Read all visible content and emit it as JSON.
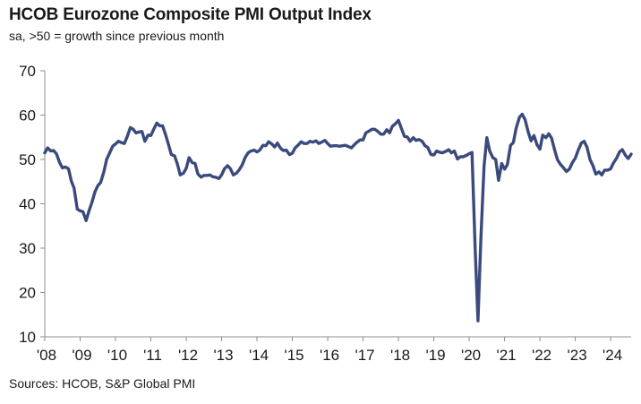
{
  "title": "HCOB Eurozone Composite PMI Output Index",
  "subtitle": "sa, >50 = growth  since previous month",
  "source": "Sources: HCOB,  S&P Global  PMI",
  "colors": {
    "series": "#3a4a7c",
    "axis": "#8c8c8c"
  },
  "chart_data": {
    "type": "line",
    "title": "HCOB Eurozone Composite PMI Output Index",
    "subtitle": "sa, >50 = growth  since previous month",
    "ylim": [
      10,
      70
    ],
    "yticks": [
      10,
      20,
      30,
      40,
      50,
      60,
      70
    ],
    "xlim": [
      2008,
      2024.58
    ],
    "xticks": [
      {
        "v": 2008,
        "label": "'08"
      },
      {
        "v": 2009,
        "label": "'09"
      },
      {
        "v": 2010,
        "label": "'10"
      },
      {
        "v": 2011,
        "label": "'11"
      },
      {
        "v": 2012,
        "label": "'12"
      },
      {
        "v": 2013,
        "label": "'13"
      },
      {
        "v": 2014,
        "label": "'14"
      },
      {
        "v": 2015,
        "label": "'15"
      },
      {
        "v": 2016,
        "label": "'16"
      },
      {
        "v": 2017,
        "label": "'17"
      },
      {
        "v": 2018,
        "label": "'18"
      },
      {
        "v": 2019,
        "label": "'19"
      },
      {
        "v": 2020,
        "label": "'20"
      },
      {
        "v": 2021,
        "label": "'21"
      },
      {
        "v": 2022,
        "label": "'22"
      },
      {
        "v": 2023,
        "label": "'23"
      },
      {
        "v": 2024,
        "label": "'24"
      }
    ],
    "grid": false,
    "series": [
      {
        "points": [
          [
            2008.0,
            51.5
          ],
          [
            2008.08,
            52.6
          ],
          [
            2008.17,
            51.9
          ],
          [
            2008.25,
            52.0
          ],
          [
            2008.33,
            51.3
          ],
          [
            2008.42,
            49.3
          ],
          [
            2008.5,
            48.1
          ],
          [
            2008.58,
            48.3
          ],
          [
            2008.67,
            47.9
          ],
          [
            2008.75,
            45.2
          ],
          [
            2008.83,
            43.5
          ],
          [
            2008.92,
            38.8
          ],
          [
            2009.0,
            38.4
          ],
          [
            2009.08,
            38.2
          ],
          [
            2009.17,
            36.2
          ],
          [
            2009.25,
            38.4
          ],
          [
            2009.33,
            40.2
          ],
          [
            2009.42,
            42.7
          ],
          [
            2009.5,
            44.1
          ],
          [
            2009.58,
            44.8
          ],
          [
            2009.67,
            47.2
          ],
          [
            2009.75,
            50.0
          ],
          [
            2009.83,
            51.4
          ],
          [
            2009.92,
            53.0
          ],
          [
            2010.0,
            53.5
          ],
          [
            2010.08,
            54.1
          ],
          [
            2010.17,
            53.8
          ],
          [
            2010.25,
            53.6
          ],
          [
            2010.33,
            55.1
          ],
          [
            2010.42,
            57.2
          ],
          [
            2010.5,
            56.8
          ],
          [
            2010.58,
            56.0
          ],
          [
            2010.67,
            56.2
          ],
          [
            2010.75,
            56.3
          ],
          [
            2010.83,
            54.1
          ],
          [
            2010.92,
            55.5
          ],
          [
            2011.0,
            55.4
          ],
          [
            2011.08,
            56.8
          ],
          [
            2011.17,
            58.2
          ],
          [
            2011.25,
            57.6
          ],
          [
            2011.33,
            57.6
          ],
          [
            2011.42,
            55.5
          ],
          [
            2011.5,
            53.3
          ],
          [
            2011.58,
            51.1
          ],
          [
            2011.67,
            50.8
          ],
          [
            2011.75,
            49.0
          ],
          [
            2011.83,
            46.5
          ],
          [
            2011.92,
            46.9
          ],
          [
            2012.0,
            48.0
          ],
          [
            2012.08,
            50.4
          ],
          [
            2012.17,
            49.3
          ],
          [
            2012.25,
            49.1
          ],
          [
            2012.33,
            46.7
          ],
          [
            2012.42,
            46.0
          ],
          [
            2012.5,
            46.4
          ],
          [
            2012.58,
            46.4
          ],
          [
            2012.67,
            46.5
          ],
          [
            2012.75,
            46.1
          ],
          [
            2012.83,
            46.0
          ],
          [
            2012.92,
            45.7
          ],
          [
            2013.0,
            46.5
          ],
          [
            2013.08,
            47.9
          ],
          [
            2013.17,
            48.6
          ],
          [
            2013.25,
            47.9
          ],
          [
            2013.33,
            46.5
          ],
          [
            2013.42,
            46.9
          ],
          [
            2013.5,
            47.7
          ],
          [
            2013.58,
            48.7
          ],
          [
            2013.67,
            50.5
          ],
          [
            2013.75,
            51.5
          ],
          [
            2013.83,
            51.9
          ],
          [
            2013.92,
            52.1
          ],
          [
            2014.0,
            51.7
          ],
          [
            2014.08,
            52.1
          ],
          [
            2014.17,
            53.2
          ],
          [
            2014.25,
            53.1
          ],
          [
            2014.33,
            54.0
          ],
          [
            2014.42,
            53.5
          ],
          [
            2014.5,
            52.8
          ],
          [
            2014.58,
            53.7
          ],
          [
            2014.67,
            52.5
          ],
          [
            2014.75,
            52.0
          ],
          [
            2014.83,
            52.1
          ],
          [
            2014.92,
            51.1
          ],
          [
            2015.0,
            51.4
          ],
          [
            2015.08,
            52.6
          ],
          [
            2015.17,
            53.3
          ],
          [
            2015.25,
            54.0
          ],
          [
            2015.33,
            53.6
          ],
          [
            2015.42,
            53.6
          ],
          [
            2015.5,
            54.1
          ],
          [
            2015.58,
            53.9
          ],
          [
            2015.67,
            54.2
          ],
          [
            2015.75,
            53.6
          ],
          [
            2015.83,
            53.9
          ],
          [
            2015.92,
            54.3
          ],
          [
            2016.0,
            53.6
          ],
          [
            2016.08,
            53.0
          ],
          [
            2016.17,
            53.1
          ],
          [
            2016.25,
            53.1
          ],
          [
            2016.33,
            53.0
          ],
          [
            2016.42,
            53.1
          ],
          [
            2016.5,
            53.2
          ],
          [
            2016.58,
            52.9
          ],
          [
            2016.67,
            52.6
          ],
          [
            2016.75,
            53.3
          ],
          [
            2016.83,
            53.9
          ],
          [
            2016.92,
            54.4
          ],
          [
            2017.0,
            54.4
          ],
          [
            2017.08,
            56.0
          ],
          [
            2017.17,
            56.4
          ],
          [
            2017.25,
            56.8
          ],
          [
            2017.33,
            56.8
          ],
          [
            2017.42,
            56.3
          ],
          [
            2017.5,
            55.7
          ],
          [
            2017.58,
            55.7
          ],
          [
            2017.67,
            56.7
          ],
          [
            2017.75,
            56.0
          ],
          [
            2017.83,
            57.5
          ],
          [
            2017.92,
            58.1
          ],
          [
            2018.0,
            58.8
          ],
          [
            2018.08,
            57.1
          ],
          [
            2018.17,
            55.2
          ],
          [
            2018.25,
            55.1
          ],
          [
            2018.33,
            54.1
          ],
          [
            2018.42,
            54.9
          ],
          [
            2018.5,
            54.3
          ],
          [
            2018.58,
            54.5
          ],
          [
            2018.67,
            54.1
          ],
          [
            2018.75,
            53.1
          ],
          [
            2018.83,
            52.7
          ],
          [
            2018.92,
            51.1
          ],
          [
            2019.0,
            51.0
          ],
          [
            2019.08,
            51.9
          ],
          [
            2019.17,
            51.6
          ],
          [
            2019.25,
            51.5
          ],
          [
            2019.33,
            51.8
          ],
          [
            2019.42,
            52.2
          ],
          [
            2019.5,
            51.5
          ],
          [
            2019.58,
            51.9
          ],
          [
            2019.67,
            50.1
          ],
          [
            2019.75,
            50.6
          ],
          [
            2019.83,
            50.6
          ],
          [
            2019.92,
            50.9
          ],
          [
            2020.0,
            51.3
          ],
          [
            2020.08,
            51.6
          ],
          [
            2020.17,
            29.7
          ],
          [
            2020.25,
            13.6
          ],
          [
            2020.33,
            31.9
          ],
          [
            2020.42,
            48.5
          ],
          [
            2020.5,
            54.9
          ],
          [
            2020.58,
            51.9
          ],
          [
            2020.67,
            50.4
          ],
          [
            2020.75,
            50.0
          ],
          [
            2020.83,
            45.3
          ],
          [
            2020.92,
            49.1
          ],
          [
            2021.0,
            47.8
          ],
          [
            2021.08,
            48.8
          ],
          [
            2021.17,
            53.2
          ],
          [
            2021.25,
            53.8
          ],
          [
            2021.33,
            57.1
          ],
          [
            2021.42,
            59.5
          ],
          [
            2021.5,
            60.2
          ],
          [
            2021.58,
            59.0
          ],
          [
            2021.67,
            56.2
          ],
          [
            2021.75,
            54.2
          ],
          [
            2021.83,
            55.4
          ],
          [
            2021.92,
            53.3
          ],
          [
            2022.0,
            52.3
          ],
          [
            2022.08,
            55.5
          ],
          [
            2022.17,
            54.9
          ],
          [
            2022.25,
            55.8
          ],
          [
            2022.33,
            54.8
          ],
          [
            2022.42,
            52.0
          ],
          [
            2022.5,
            49.9
          ],
          [
            2022.58,
            48.9
          ],
          [
            2022.67,
            48.1
          ],
          [
            2022.75,
            47.3
          ],
          [
            2022.83,
            47.8
          ],
          [
            2022.92,
            49.3
          ],
          [
            2023.0,
            50.3
          ],
          [
            2023.08,
            52.0
          ],
          [
            2023.17,
            53.7
          ],
          [
            2023.25,
            54.1
          ],
          [
            2023.33,
            52.8
          ],
          [
            2023.42,
            49.9
          ],
          [
            2023.5,
            48.6
          ],
          [
            2023.58,
            46.7
          ],
          [
            2023.67,
            47.2
          ],
          [
            2023.75,
            46.5
          ],
          [
            2023.83,
            47.6
          ],
          [
            2023.92,
            47.6
          ],
          [
            2024.0,
            47.9
          ],
          [
            2024.08,
            49.2
          ],
          [
            2024.17,
            50.3
          ],
          [
            2024.25,
            51.7
          ],
          [
            2024.33,
            52.2
          ],
          [
            2024.42,
            50.9
          ],
          [
            2024.5,
            50.2
          ],
          [
            2024.58,
            51.2
          ]
        ]
      }
    ]
  }
}
